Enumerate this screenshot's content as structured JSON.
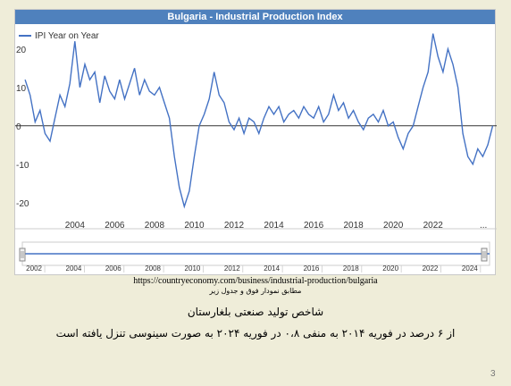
{
  "chart_data": {
    "type": "line",
    "title": "Bulgaria - Industrial Production Index",
    "series": [
      {
        "name": "IPI Year on Year",
        "color": "#4472c4",
        "points": [
          [
            2001.5,
            12
          ],
          [
            2001.75,
            8
          ],
          [
            2002.0,
            1
          ],
          [
            2002.25,
            4
          ],
          [
            2002.5,
            -2
          ],
          [
            2002.75,
            -4
          ],
          [
            2003.0,
            2
          ],
          [
            2003.25,
            8
          ],
          [
            2003.5,
            5
          ],
          [
            2003.75,
            11
          ],
          [
            2004.0,
            22
          ],
          [
            2004.25,
            10
          ],
          [
            2004.5,
            16
          ],
          [
            2004.75,
            12
          ],
          [
            2005.0,
            14
          ],
          [
            2005.25,
            6
          ],
          [
            2005.5,
            13
          ],
          [
            2005.75,
            9
          ],
          [
            2006.0,
            7
          ],
          [
            2006.25,
            12
          ],
          [
            2006.5,
            7
          ],
          [
            2006.75,
            11
          ],
          [
            2007.0,
            15
          ],
          [
            2007.25,
            8
          ],
          [
            2007.5,
            12
          ],
          [
            2007.75,
            9
          ],
          [
            2008.0,
            8
          ],
          [
            2008.25,
            10
          ],
          [
            2008.5,
            6
          ],
          [
            2008.75,
            2
          ],
          [
            2009.0,
            -8
          ],
          [
            2009.25,
            -16
          ],
          [
            2009.5,
            -21
          ],
          [
            2009.75,
            -17
          ],
          [
            2010.0,
            -8
          ],
          [
            2010.25,
            0
          ],
          [
            2010.5,
            3
          ],
          [
            2010.75,
            7
          ],
          [
            2011.0,
            14
          ],
          [
            2011.25,
            8
          ],
          [
            2011.5,
            6
          ],
          [
            2011.75,
            1
          ],
          [
            2012.0,
            -1
          ],
          [
            2012.25,
            2
          ],
          [
            2012.5,
            -2
          ],
          [
            2012.75,
            2
          ],
          [
            2013.0,
            1
          ],
          [
            2013.25,
            -2
          ],
          [
            2013.5,
            2
          ],
          [
            2013.75,
            5
          ],
          [
            2014.0,
            3
          ],
          [
            2014.25,
            5
          ],
          [
            2014.5,
            1
          ],
          [
            2014.75,
            3
          ],
          [
            2015.0,
            4
          ],
          [
            2015.25,
            2
          ],
          [
            2015.5,
            5
          ],
          [
            2015.75,
            3
          ],
          [
            2016.0,
            2
          ],
          [
            2016.25,
            5
          ],
          [
            2016.5,
            1
          ],
          [
            2016.75,
            3
          ],
          [
            2017.0,
            8
          ],
          [
            2017.25,
            4
          ],
          [
            2017.5,
            6
          ],
          [
            2017.75,
            2
          ],
          [
            2018.0,
            4
          ],
          [
            2018.25,
            1
          ],
          [
            2018.5,
            -1
          ],
          [
            2018.75,
            2
          ],
          [
            2019.0,
            3
          ],
          [
            2019.25,
            1
          ],
          [
            2019.5,
            4
          ],
          [
            2019.75,
            0
          ],
          [
            2020.0,
            1
          ],
          [
            2020.25,
            -3
          ],
          [
            2020.5,
            -6
          ],
          [
            2020.75,
            -2
          ],
          [
            2021.0,
            0
          ],
          [
            2021.25,
            5
          ],
          [
            2021.5,
            10
          ],
          [
            2021.75,
            14
          ],
          [
            2022.0,
            24
          ],
          [
            2022.25,
            18
          ],
          [
            2022.5,
            14
          ],
          [
            2022.75,
            20
          ],
          [
            2023.0,
            16
          ],
          [
            2023.25,
            10
          ],
          [
            2023.5,
            -2
          ],
          [
            2023.75,
            -8
          ],
          [
            2024.0,
            -10
          ],
          [
            2024.25,
            -6
          ],
          [
            2024.5,
            -8
          ],
          [
            2024.75,
            -5
          ],
          [
            2025.0,
            0
          ]
        ]
      }
    ],
    "xlim": [
      2001.0,
      2025.2
    ],
    "ylim": [
      -24,
      26
    ],
    "yticks": [
      -20,
      -10,
      0,
      10,
      20
    ],
    "xticks": [
      2004,
      2006,
      2008,
      2010,
      2012,
      2014,
      2016,
      2018,
      2020,
      2022
    ],
    "legend": "top-left",
    "grid": false,
    "zero_line": true,
    "navigator": {
      "xticks": [
        2002,
        2004,
        2006,
        2008,
        2010,
        2012,
        2014,
        2016,
        2018,
        2020,
        2022,
        2024
      ]
    }
  },
  "source": {
    "url": "https://countryeconomy.com/business/industrial-production/bulgaria",
    "note": "مطابق نمودار فوق و جدول زیر"
  },
  "caption": {
    "title": "شاخص تولید صنعتی بلغارستان",
    "body": "از ۶ درصد در فوریه ۲۰۱۴ به منفی ۰،۸ در فوریه ۲۰۲۴ به صورت سینوسی تنزل یافته است"
  },
  "page_number": "3",
  "icons": {
    "left_handle": "range-handle-icon",
    "right_handle": "range-handle-icon",
    "dots": "dots-icon"
  },
  "dots_text": "..."
}
